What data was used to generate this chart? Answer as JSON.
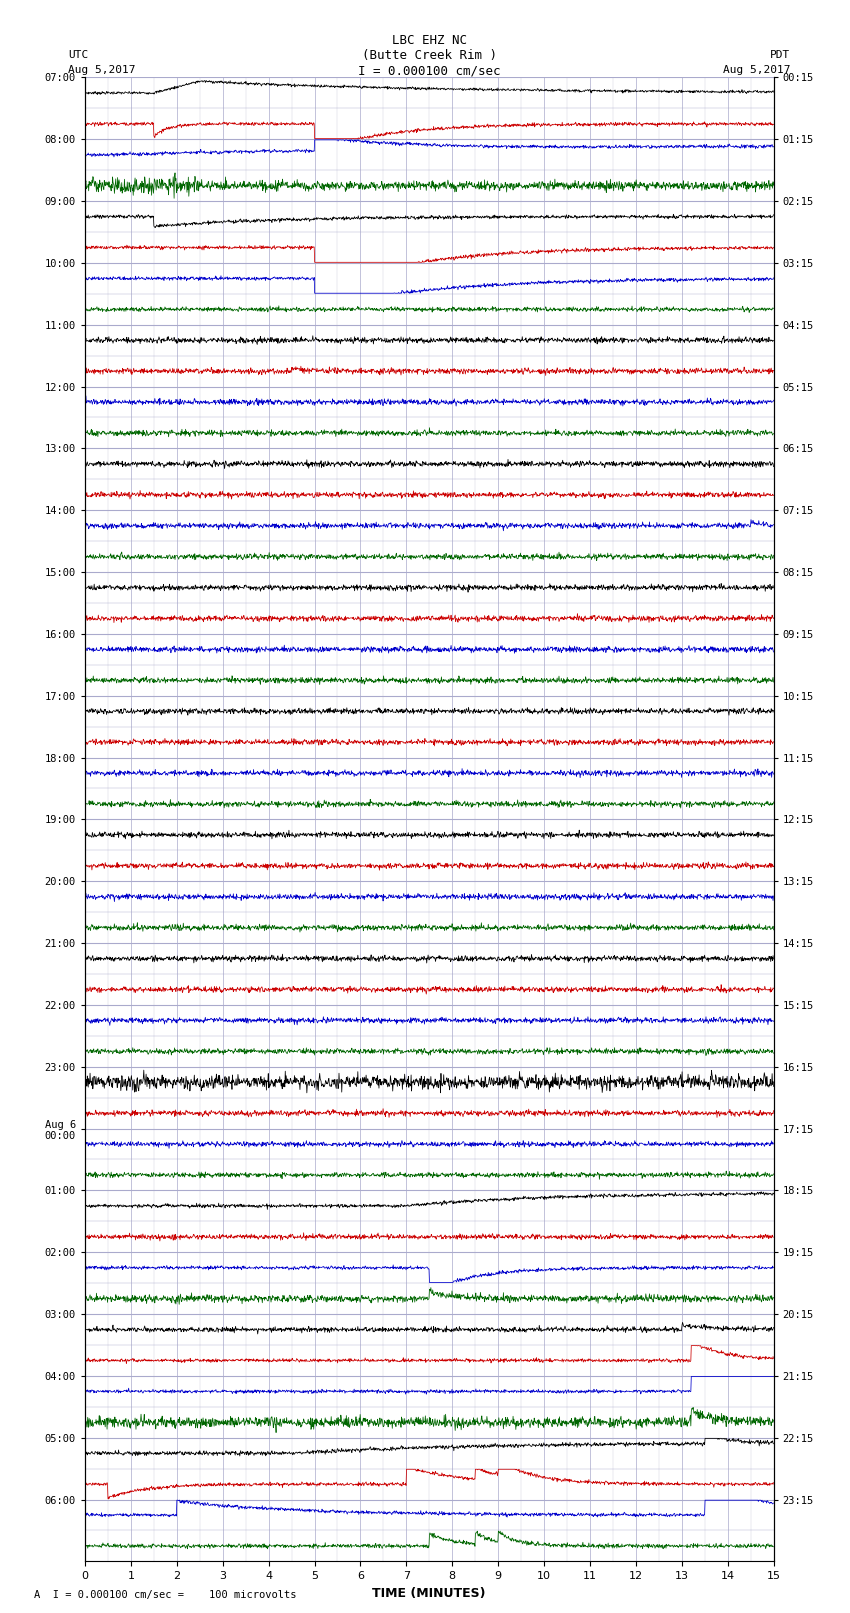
{
  "title_line1": "LBC EHZ NC",
  "title_line2": "(Butte Creek Rim )",
  "title_line3": "I = 0.000100 cm/sec",
  "left_header_line1": "UTC",
  "left_header_line2": "Aug 5,2017",
  "right_header_line1": "PDT",
  "right_header_line2": "Aug 5,2017",
  "xlabel": "TIME (MINUTES)",
  "footer": "A  I = 0.000100 cm/sec =    100 microvolts",
  "xlim": [
    0,
    15
  ],
  "bg_color": "#ffffff",
  "grid_color_major": "#aaaacc",
  "grid_color_minor": "#ccccdd",
  "trace_colors": [
    "#000000",
    "#cc0000",
    "#0000cc",
    "#006600"
  ],
  "n_rows": 48,
  "noise_amplitude": 0.055,
  "samples": 1500,
  "utc_labels": [
    "07:00",
    "08:00",
    "09:00",
    "10:00",
    "11:00",
    "12:00",
    "13:00",
    "14:00",
    "15:00",
    "16:00",
    "17:00",
    "18:00",
    "19:00",
    "20:00",
    "21:00",
    "22:00",
    "23:00",
    "Aug 6\n00:00",
    "01:00",
    "02:00",
    "03:00",
    "04:00",
    "05:00",
    "06:00"
  ],
  "pdt_labels": [
    "00:15",
    "01:15",
    "02:15",
    "03:15",
    "04:15",
    "05:15",
    "06:15",
    "07:15",
    "08:15",
    "09:15",
    "10:15",
    "11:15",
    "12:15",
    "13:15",
    "14:15",
    "15:15",
    "16:15",
    "17:15",
    "18:15",
    "19:15",
    "20:15",
    "21:15",
    "22:15",
    "23:15"
  ]
}
